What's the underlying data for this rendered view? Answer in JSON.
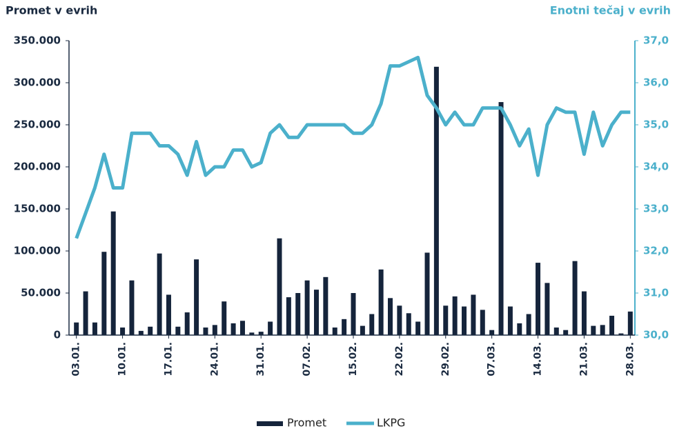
{
  "chart_data": {
    "type": "bar_line",
    "y_title": "Promet v evrih",
    "y2_title": "Enotni tečaj v evrih",
    "categories": [
      "03.01.",
      null,
      null,
      null,
      null,
      "10.01.",
      null,
      null,
      null,
      null,
      "17.01.",
      null,
      null,
      null,
      null,
      "24.01.",
      null,
      null,
      null,
      null,
      "31.01.",
      null,
      null,
      null,
      null,
      "07.02.",
      null,
      null,
      null,
      null,
      "15.02.",
      null,
      null,
      null,
      null,
      "22.02.",
      null,
      null,
      null,
      null,
      "29.02.",
      null,
      null,
      null,
      null,
      "07.03.",
      null,
      null,
      null,
      null,
      "14.03.",
      null,
      null,
      null,
      null,
      "21.03.",
      null,
      null,
      null,
      null,
      "28.03."
    ],
    "series": [
      {
        "name": "Promet",
        "type": "bar",
        "color": "#15243b",
        "axis": "y",
        "values": [
          15000,
          52000,
          15000,
          99000,
          147000,
          9000,
          65000,
          5000,
          10000,
          97000,
          48000,
          10000,
          27000,
          90000,
          9000,
          12000,
          40000,
          14000,
          17000,
          3000,
          4000,
          16000,
          115000,
          45000,
          50000,
          65000,
          54000,
          69000,
          9000,
          19000,
          50000,
          11000,
          25000,
          78000,
          44000,
          35000,
          26000,
          16000,
          98000,
          319000,
          35000,
          46000,
          34000,
          48000,
          30000,
          6000,
          277000,
          34000,
          14000,
          25000,
          86000,
          62000,
          9000,
          6000,
          88000,
          52000,
          11000,
          12000,
          23000,
          2000,
          28000
        ]
      },
      {
        "name": "LKPG",
        "type": "line",
        "color": "#4bb0cb",
        "axis": "y2",
        "values": [
          32.3,
          32.9,
          33.5,
          34.3,
          33.5,
          33.5,
          34.8,
          34.8,
          34.8,
          34.5,
          34.5,
          34.3,
          33.8,
          34.6,
          33.8,
          34.0,
          34.0,
          34.4,
          34.4,
          34.0,
          34.1,
          34.8,
          35.0,
          34.7,
          34.7,
          35.0,
          35.0,
          35.0,
          35.0,
          35.0,
          34.8,
          34.8,
          35.0,
          35.5,
          36.4,
          36.4,
          36.5,
          36.6,
          35.7,
          35.4,
          35.0,
          35.3,
          35.0,
          35.0,
          35.4,
          35.4,
          35.4,
          35.0,
          34.5,
          34.9,
          33.8,
          35.0,
          35.4,
          35.3,
          35.3,
          34.3,
          35.3,
          34.5,
          35.0,
          35.3,
          35.3
        ]
      }
    ],
    "ylim": [
      0,
      350000
    ],
    "yticks": [
      0,
      {
        "value": 50000,
        "label": "50.000"
      },
      {
        "value": 100000,
        "label": "100.000"
      },
      {
        "value": 150000,
        "label": "150.000"
      },
      {
        "value": 200000,
        "label": "200.000"
      },
      {
        "value": 250000,
        "label": "250.000"
      },
      {
        "value": 300000,
        "label": "300.000"
      },
      {
        "value": 350000,
        "label": "350.000"
      }
    ],
    "y2lim": [
      30,
      37
    ],
    "y2ticks": [
      {
        "value": 30,
        "label": "30,0"
      },
      {
        "value": 31,
        "label": "31,0"
      },
      {
        "value": 32,
        "label": "32,0"
      },
      {
        "value": 33,
        "label": "33,0"
      },
      {
        "value": 34,
        "label": "34,0"
      },
      {
        "value": 35,
        "label": "35,0"
      },
      {
        "value": 36,
        "label": "36,0"
      },
      {
        "value": 37,
        "label": "37,0"
      }
    ],
    "legend": "bottom",
    "grid": false
  }
}
